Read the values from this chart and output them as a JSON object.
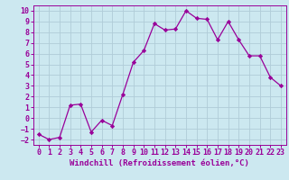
{
  "x": [
    0,
    1,
    2,
    3,
    4,
    5,
    6,
    7,
    8,
    9,
    10,
    11,
    12,
    13,
    14,
    15,
    16,
    17,
    18,
    19,
    20,
    21,
    22,
    23
  ],
  "y": [
    -1.5,
    -2.0,
    -1.8,
    1.2,
    1.3,
    -1.3,
    -0.2,
    -0.7,
    2.2,
    5.2,
    6.3,
    8.8,
    8.2,
    8.3,
    10.0,
    9.3,
    9.2,
    7.3,
    9.0,
    7.3,
    5.8,
    5.8,
    3.8,
    3.0
  ],
  "line_color": "#990099",
  "marker": "D",
  "marker_size": 2.2,
  "bg_color": "#cce8f0",
  "grid_color": "#b0ccd8",
  "xlabel": "Windchill (Refroidissement éolien,°C)",
  "xlabel_fontsize": 6.5,
  "tick_fontsize": 6.0,
  "ylim": [
    -2.5,
    10.5
  ],
  "xlim": [
    -0.5,
    23.5
  ],
  "yticks": [
    -2,
    -1,
    0,
    1,
    2,
    3,
    4,
    5,
    6,
    7,
    8,
    9,
    10
  ],
  "xticks": [
    0,
    1,
    2,
    3,
    4,
    5,
    6,
    7,
    8,
    9,
    10,
    11,
    12,
    13,
    14,
    15,
    16,
    17,
    18,
    19,
    20,
    21,
    22,
    23
  ]
}
